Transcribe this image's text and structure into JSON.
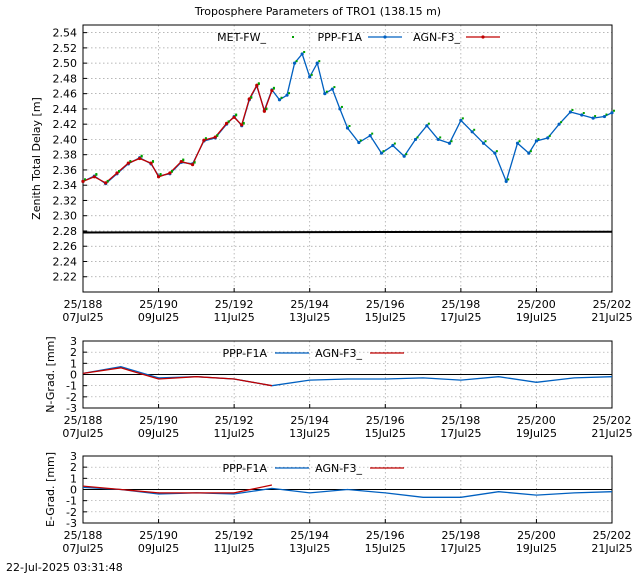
{
  "title": "Troposphere Parameters of TRO1 (138.15 m)",
  "timestamp": "22-Jul-2025 03:31:48",
  "x_ticks": [
    {
      "top": "25/188",
      "bottom": "07Jul25"
    },
    {
      "top": "25/190",
      "bottom": "09Jul25"
    },
    {
      "top": "25/192",
      "bottom": "11Jul25"
    },
    {
      "top": "25/194",
      "bottom": "13Jul25"
    },
    {
      "top": "25/196",
      "bottom": "15Jul25"
    },
    {
      "top": "25/198",
      "bottom": "17Jul25"
    },
    {
      "top": "25/200",
      "bottom": "19Jul25"
    },
    {
      "top": "25/202",
      "bottom": "21Jul25"
    }
  ],
  "colors": {
    "met": "#00a000",
    "ppp": "#0060c0",
    "agn": "#c00000",
    "black": "#000000"
  },
  "chart_data": [
    {
      "type": "line",
      "ylabel": "Zenith Total Delay [m]",
      "xlim": [
        188,
        202
      ],
      "ylim": [
        2.2,
        2.55
      ],
      "yticks": [
        "2.22",
        "2.24",
        "2.26",
        "2.28",
        "2.30",
        "2.32",
        "2.34",
        "2.36",
        "2.38",
        "2.40",
        "2.42",
        "2.44",
        "2.46",
        "2.48",
        "2.50",
        "2.52",
        "2.54"
      ],
      "legend": [
        "MET-FW_",
        "PPP-F1A",
        "AGN-F3_"
      ],
      "series": [
        {
          "name": "MET-FW_",
          "x": [
            188,
            202
          ],
          "y": [
            2.278,
            2.279
          ]
        },
        {
          "name": "PPP-F1A",
          "x": [
            188.0,
            188.3,
            188.6,
            188.9,
            189.2,
            189.5,
            189.8,
            190.0,
            190.3,
            190.6,
            190.9,
            191.2,
            191.5,
            191.8,
            192.0,
            192.2,
            192.4,
            192.6,
            192.8,
            193.0,
            193.2,
            193.4,
            193.6,
            193.8,
            194.0,
            194.2,
            194.4,
            194.6,
            194.8,
            195.0,
            195.3,
            195.6,
            195.9,
            196.2,
            196.5,
            196.8,
            197.1,
            197.4,
            197.7,
            198.0,
            198.3,
            198.6,
            198.9,
            199.2,
            199.5,
            199.8,
            200.0,
            200.3,
            200.6,
            200.9,
            201.2,
            201.5,
            201.8,
            202.0
          ],
          "y": [
            2.345,
            2.352,
            2.342,
            2.355,
            2.368,
            2.376,
            2.368,
            2.352,
            2.355,
            2.37,
            2.368,
            2.398,
            2.402,
            2.42,
            2.43,
            2.418,
            2.452,
            2.47,
            2.438,
            2.465,
            2.452,
            2.458,
            2.5,
            2.512,
            2.482,
            2.5,
            2.46,
            2.466,
            2.44,
            2.415,
            2.396,
            2.405,
            2.382,
            2.392,
            2.378,
            2.4,
            2.418,
            2.4,
            2.395,
            2.425,
            2.41,
            2.395,
            2.382,
            2.345,
            2.395,
            2.382,
            2.398,
            2.402,
            2.42,
            2.436,
            2.432,
            2.428,
            2.43,
            2.435
          ]
        },
        {
          "name": "AGN-F3_",
          "x": [
            188.0,
            188.3,
            188.6,
            188.9,
            189.2,
            189.5,
            189.8,
            190.0,
            190.3,
            190.6,
            190.9,
            191.2,
            191.5,
            191.8,
            192.0,
            192.2,
            192.4,
            192.6,
            192.8,
            193.0
          ],
          "y": [
            2.345,
            2.351,
            2.343,
            2.356,
            2.369,
            2.375,
            2.369,
            2.351,
            2.356,
            2.371,
            2.367,
            2.399,
            2.403,
            2.421,
            2.429,
            2.419,
            2.453,
            2.471,
            2.437,
            2.464
          ]
        }
      ]
    },
    {
      "type": "line",
      "ylabel": "N-Grad. [mm]",
      "xlim": [
        188,
        202
      ],
      "ylim": [
        -3,
        3
      ],
      "yticks": [
        "-3",
        "-2",
        "-1",
        "0",
        "1",
        "2",
        "3"
      ],
      "legend": [
        "PPP-F1A",
        "AGN-F3_"
      ],
      "series": [
        {
          "name": "PPP-F1A",
          "x": [
            188,
            189,
            190,
            191,
            192,
            193,
            194,
            195,
            196,
            197,
            198,
            199,
            200,
            201,
            202
          ],
          "y": [
            0.1,
            0.7,
            -0.3,
            -0.2,
            -0.4,
            -1.0,
            -0.5,
            -0.4,
            -0.4,
            -0.3,
            -0.5,
            -0.2,
            -0.7,
            -0.3,
            -0.2
          ]
        },
        {
          "name": "AGN-F3_",
          "x": [
            188,
            189,
            190,
            191,
            192,
            193
          ],
          "y": [
            0.1,
            0.6,
            -0.4,
            -0.2,
            -0.4,
            -1.0
          ]
        }
      ]
    },
    {
      "type": "line",
      "ylabel": "E-Grad. [mm]",
      "xlim": [
        188,
        202
      ],
      "ylim": [
        -3,
        3
      ],
      "yticks": [
        "-3",
        "-2",
        "-1",
        "0",
        "1",
        "2",
        "3"
      ],
      "legend": [
        "PPP-F1A",
        "AGN-F3_"
      ],
      "series": [
        {
          "name": "PPP-F1A",
          "x": [
            188,
            189,
            190,
            191,
            192,
            193,
            194,
            195,
            196,
            197,
            198,
            199,
            200,
            201,
            202
          ],
          "y": [
            0.2,
            0.0,
            -0.4,
            -0.3,
            -0.4,
            0.1,
            -0.3,
            0.0,
            -0.3,
            -0.7,
            -0.7,
            -0.2,
            -0.5,
            -0.3,
            -0.2
          ]
        },
        {
          "name": "AGN-F3_",
          "x": [
            188,
            189,
            190,
            191,
            192,
            193
          ],
          "y": [
            0.3,
            0.0,
            -0.3,
            -0.3,
            -0.3,
            0.4
          ]
        }
      ]
    }
  ]
}
